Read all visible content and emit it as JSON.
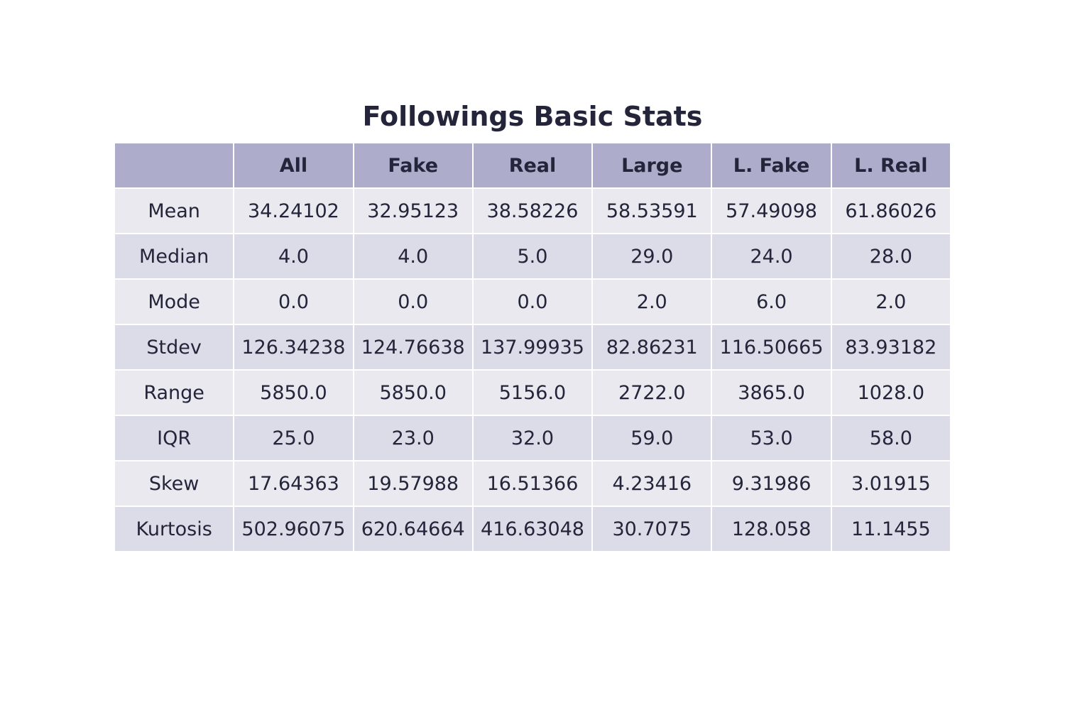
{
  "chart_data": {
    "type": "table",
    "title": "Followings Basic Stats",
    "columns": [
      "",
      "All",
      "Fake",
      "Real",
      "Large",
      "L. Fake",
      "L. Real"
    ],
    "rows": [
      [
        "Mean",
        "34.24102",
        "32.95123",
        "38.58226",
        "58.53591",
        "57.49098",
        "61.86026"
      ],
      [
        "Median",
        "4.0",
        "4.0",
        "5.0",
        "29.0",
        "24.0",
        "28.0"
      ],
      [
        "Mode",
        "0.0",
        "0.0",
        "0.0",
        "2.0",
        "6.0",
        "2.0"
      ],
      [
        "Stdev",
        "126.34238",
        "124.76638",
        "137.99935",
        "82.86231",
        "116.50665",
        "83.93182"
      ],
      [
        "Range",
        "5850.0",
        "5850.0",
        "5156.0",
        "2722.0",
        "3865.0",
        "1028.0"
      ],
      [
        "IQR",
        "25.0",
        "23.0",
        "32.0",
        "59.0",
        "53.0",
        "58.0"
      ],
      [
        "Skew",
        "17.64363",
        "19.57988",
        "16.51366",
        "4.23416",
        "9.31986",
        "3.01915"
      ],
      [
        "Kurtosis",
        "502.96075",
        "620.64664",
        "416.63048",
        "30.7075",
        "128.058",
        "11.1455"
      ]
    ],
    "colors": {
      "header_fill": "#adadcb",
      "row_fill_odd": "#e9e9ef",
      "row_fill_even": "#dcdce8",
      "text": "#24243a"
    }
  }
}
